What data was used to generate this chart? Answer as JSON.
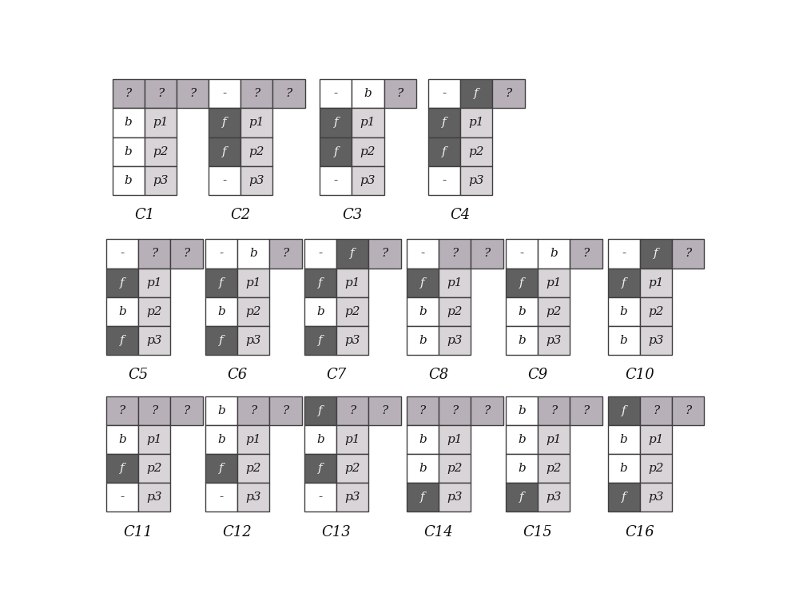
{
  "bg": "#ffffff",
  "color_map": {
    "w": "#ffffff",
    "q": "#b8b0b8",
    "f": "#606060",
    "p": "#d8d4d8",
    "dash": "#ffffff"
  },
  "cases": [
    {
      "name": "C1",
      "top": [
        [
          "?",
          "q"
        ],
        [
          "?",
          "q"
        ],
        [
          "?",
          "q"
        ]
      ],
      "rows": [
        [
          [
            "b",
            "w"
          ],
          [
            "p1",
            "p"
          ]
        ],
        [
          [
            "b",
            "w"
          ],
          [
            "p2",
            "p"
          ]
        ],
        [
          [
            "b",
            "w"
          ],
          [
            "p3",
            "p"
          ]
        ]
      ]
    },
    {
      "name": "C2",
      "top": [
        [
          "-",
          "w"
        ],
        [
          "?",
          "q"
        ],
        [
          "?",
          "q"
        ]
      ],
      "rows": [
        [
          [
            "f",
            "f"
          ],
          [
            "p1",
            "p"
          ]
        ],
        [
          [
            "f",
            "f"
          ],
          [
            "p2",
            "p"
          ]
        ],
        [
          [
            "-",
            "w"
          ],
          [
            "p3",
            "p"
          ]
        ]
      ]
    },
    {
      "name": "C3",
      "top": [
        [
          "-",
          "w"
        ],
        [
          "b",
          "w"
        ],
        [
          "?",
          "q"
        ]
      ],
      "rows": [
        [
          [
            "f",
            "f"
          ],
          [
            "p1",
            "p"
          ]
        ],
        [
          [
            "f",
            "f"
          ],
          [
            "p2",
            "p"
          ]
        ],
        [
          [
            "-",
            "w"
          ],
          [
            "p3",
            "p"
          ]
        ]
      ]
    },
    {
      "name": "C4",
      "top": [
        [
          "-",
          "w"
        ],
        [
          "f",
          "f"
        ],
        [
          "?",
          "q"
        ]
      ],
      "rows": [
        [
          [
            "f",
            "f"
          ],
          [
            "p1",
            "p"
          ]
        ],
        [
          [
            "f",
            "f"
          ],
          [
            "p2",
            "p"
          ]
        ],
        [
          [
            "-",
            "w"
          ],
          [
            "p3",
            "p"
          ]
        ]
      ]
    },
    {
      "name": "C5",
      "top": [
        [
          "-",
          "w"
        ],
        [
          "?",
          "q"
        ],
        [
          "?",
          "q"
        ]
      ],
      "rows": [
        [
          [
            "f",
            "f"
          ],
          [
            "p1",
            "p"
          ]
        ],
        [
          [
            "b",
            "w"
          ],
          [
            "p2",
            "p"
          ]
        ],
        [
          [
            "f",
            "f"
          ],
          [
            "p3",
            "p"
          ]
        ]
      ]
    },
    {
      "name": "C6",
      "top": [
        [
          "-",
          "w"
        ],
        [
          "b",
          "w"
        ],
        [
          "?",
          "q"
        ]
      ],
      "rows": [
        [
          [
            "f",
            "f"
          ],
          [
            "p1",
            "p"
          ]
        ],
        [
          [
            "b",
            "w"
          ],
          [
            "p2",
            "p"
          ]
        ],
        [
          [
            "f",
            "f"
          ],
          [
            "p3",
            "p"
          ]
        ]
      ]
    },
    {
      "name": "C7",
      "top": [
        [
          "-",
          "w"
        ],
        [
          "f",
          "f"
        ],
        [
          "?",
          "q"
        ]
      ],
      "rows": [
        [
          [
            "f",
            "f"
          ],
          [
            "p1",
            "p"
          ]
        ],
        [
          [
            "b",
            "w"
          ],
          [
            "p2",
            "p"
          ]
        ],
        [
          [
            "f",
            "f"
          ],
          [
            "p3",
            "p"
          ]
        ]
      ]
    },
    {
      "name": "C8",
      "top": [
        [
          "-",
          "w"
        ],
        [
          "?",
          "q"
        ],
        [
          "?",
          "q"
        ]
      ],
      "rows": [
        [
          [
            "f",
            "f"
          ],
          [
            "p1",
            "p"
          ]
        ],
        [
          [
            "b",
            "w"
          ],
          [
            "p2",
            "p"
          ]
        ],
        [
          [
            "b",
            "w"
          ],
          [
            "p3",
            "p"
          ]
        ]
      ]
    },
    {
      "name": "C9",
      "top": [
        [
          "-",
          "w"
        ],
        [
          "b",
          "w"
        ],
        [
          "?",
          "q"
        ]
      ],
      "rows": [
        [
          [
            "f",
            "f"
          ],
          [
            "p1",
            "p"
          ]
        ],
        [
          [
            "b",
            "w"
          ],
          [
            "p2",
            "p"
          ]
        ],
        [
          [
            "b",
            "w"
          ],
          [
            "p3",
            "p"
          ]
        ]
      ]
    },
    {
      "name": "C10",
      "top": [
        [
          "-",
          "w"
        ],
        [
          "f",
          "f"
        ],
        [
          "?",
          "q"
        ]
      ],
      "rows": [
        [
          [
            "f",
            "f"
          ],
          [
            "p1",
            "p"
          ]
        ],
        [
          [
            "b",
            "w"
          ],
          [
            "p2",
            "p"
          ]
        ],
        [
          [
            "b",
            "w"
          ],
          [
            "p3",
            "p"
          ]
        ]
      ]
    },
    {
      "name": "C11",
      "top": [
        [
          "?",
          "q"
        ],
        [
          "?",
          "q"
        ],
        [
          "?",
          "q"
        ]
      ],
      "rows": [
        [
          [
            "b",
            "w"
          ],
          [
            "p1",
            "p"
          ]
        ],
        [
          [
            "f",
            "f"
          ],
          [
            "p2",
            "p"
          ]
        ],
        [
          [
            "-",
            "w"
          ],
          [
            "p3",
            "p"
          ]
        ]
      ]
    },
    {
      "name": "C12",
      "top": [
        [
          "b",
          "w"
        ],
        [
          "?",
          "q"
        ],
        [
          "?",
          "q"
        ]
      ],
      "rows": [
        [
          [
            "b",
            "w"
          ],
          [
            "p1",
            "p"
          ]
        ],
        [
          [
            "f",
            "f"
          ],
          [
            "p2",
            "p"
          ]
        ],
        [
          [
            "-",
            "w"
          ],
          [
            "p3",
            "p"
          ]
        ]
      ]
    },
    {
      "name": "C13",
      "top": [
        [
          "f",
          "f"
        ],
        [
          "?",
          "q"
        ],
        [
          "?",
          "q"
        ]
      ],
      "rows": [
        [
          [
            "b",
            "w"
          ],
          [
            "p1",
            "p"
          ]
        ],
        [
          [
            "f",
            "f"
          ],
          [
            "p2",
            "p"
          ]
        ],
        [
          [
            "-",
            "w"
          ],
          [
            "p3",
            "p"
          ]
        ]
      ]
    },
    {
      "name": "C14",
      "top": [
        [
          "?",
          "q"
        ],
        [
          "?",
          "q"
        ],
        [
          "?",
          "q"
        ]
      ],
      "rows": [
        [
          [
            "b",
            "w"
          ],
          [
            "p1",
            "p"
          ]
        ],
        [
          [
            "b",
            "w"
          ],
          [
            "p2",
            "p"
          ]
        ],
        [
          [
            "f",
            "f"
          ],
          [
            "p3",
            "p"
          ]
        ]
      ]
    },
    {
      "name": "C15",
      "top": [
        [
          "b",
          "w"
        ],
        [
          "?",
          "q"
        ],
        [
          "?",
          "q"
        ]
      ],
      "rows": [
        [
          [
            "b",
            "w"
          ],
          [
            "p1",
            "p"
          ]
        ],
        [
          [
            "b",
            "w"
          ],
          [
            "p2",
            "p"
          ]
        ],
        [
          [
            "f",
            "f"
          ],
          [
            "p3",
            "p"
          ]
        ]
      ]
    },
    {
      "name": "C16",
      "top": [
        [
          "f",
          "f"
        ],
        [
          "?",
          "q"
        ],
        [
          "?",
          "q"
        ]
      ],
      "rows": [
        [
          [
            "b",
            "w"
          ],
          [
            "p1",
            "p"
          ]
        ],
        [
          [
            "b",
            "w"
          ],
          [
            "p2",
            "p"
          ]
        ],
        [
          [
            "f",
            "f"
          ],
          [
            "p3",
            "p"
          ]
        ]
      ]
    }
  ]
}
